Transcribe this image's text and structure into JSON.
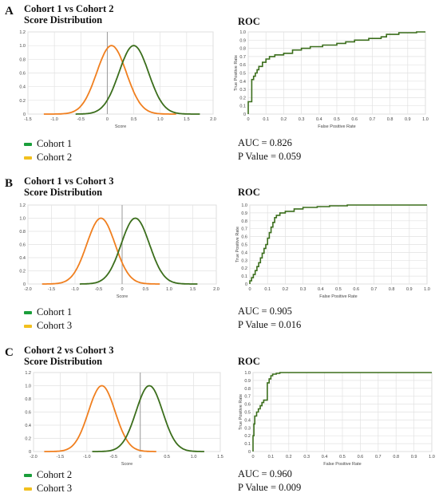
{
  "panels": [
    {
      "letter": "A",
      "title_line1": "Cohort 1 vs Cohort 2",
      "title_line2": "Score Distribution",
      "roc_title": "ROC",
      "auc_text": "AUC = 0.826",
      "pvalue_text": "P Value = 0.059",
      "legend": [
        {
          "label": "Cohort 1",
          "color": "#1a9e3a"
        },
        {
          "label": "Cohort 2",
          "color": "#f2c01e"
        }
      ]
    },
    {
      "letter": "B",
      "title_line1": "Cohort 1 vs Cohort 3",
      "title_line2": "Score Distribution",
      "roc_title": "ROC",
      "auc_text": "AUC = 0.905",
      "pvalue_text": "P Value = 0.016",
      "legend": [
        {
          "label": "Cohort 1",
          "color": "#1a9e3a"
        },
        {
          "label": "Cohort 3",
          "color": "#f2c01e"
        }
      ]
    },
    {
      "letter": "C",
      "title_line1": "Cohort 2 vs Cohort 3",
      "title_line2": "Score Distribution",
      "roc_title": "ROC",
      "auc_text": "AUC = 0.960",
      "pvalue_text": "P Value = 0.009",
      "legend": [
        {
          "label": "Cohort 2",
          "color": "#1a9e3a"
        },
        {
          "label": "Cohort 3",
          "color": "#f2c01e"
        }
      ]
    }
  ],
  "chart_data": [
    {
      "type": "line",
      "panel": "A",
      "kind": "distribution",
      "xlabel": "Score",
      "ylabel": "",
      "xlim": [
        -1.5,
        2.0
      ],
      "ylim": [
        0,
        1.2
      ],
      "xticks": [
        "-1.5",
        "-1.0",
        "-0.5",
        "0",
        "0.5",
        "1.0",
        "1.5",
        "2.0"
      ],
      "yticks": [
        "0",
        "0.2",
        "0.4",
        "0.6",
        "0.8",
        "1.0",
        "1.2"
      ],
      "grid": true,
      "series": [
        {
          "name": "Cohort 2",
          "color": "#f07f1f",
          "gaussian": {
            "mean": 0.08,
            "sd": 0.28,
            "min": -1.2,
            "max": 1.3
          }
        },
        {
          "name": "Cohort 1",
          "color": "#3b6e1c",
          "gaussian": {
            "mean": 0.5,
            "sd": 0.28,
            "min": -0.6,
            "max": 1.75
          }
        }
      ]
    },
    {
      "type": "line",
      "panel": "A",
      "kind": "roc",
      "xlabel": "False Positive Rate",
      "ylabel": "True Positive Rate",
      "xlim": [
        0,
        1
      ],
      "ylim": [
        0,
        1
      ],
      "xticks": [
        "0",
        "0.1",
        "0.2",
        "0.3",
        "0.4",
        "0.5",
        "0.6",
        "0.7",
        "0.8",
        "0.9",
        "1.0"
      ],
      "yticks": [
        "0",
        "0.1",
        "0.2",
        "0.3",
        "0.4",
        "0.5",
        "0.6",
        "0.7",
        "0.8",
        "0.9",
        "1.0"
      ],
      "grid": true,
      "series": [
        {
          "name": "",
          "color": "#3b6e1c",
          "step": true,
          "points": [
            [
              0,
              0
            ],
            [
              0,
              0.15
            ],
            [
              0.02,
              0.15
            ],
            [
              0.02,
              0.42
            ],
            [
              0.03,
              0.42
            ],
            [
              0.03,
              0.46
            ],
            [
              0.04,
              0.46
            ],
            [
              0.04,
              0.5
            ],
            [
              0.05,
              0.5
            ],
            [
              0.05,
              0.54
            ],
            [
              0.06,
              0.54
            ],
            [
              0.06,
              0.58
            ],
            [
              0.08,
              0.58
            ],
            [
              0.08,
              0.63
            ],
            [
              0.1,
              0.63
            ],
            [
              0.1,
              0.67
            ],
            [
              0.12,
              0.67
            ],
            [
              0.12,
              0.7
            ],
            [
              0.15,
              0.7
            ],
            [
              0.15,
              0.72
            ],
            [
              0.2,
              0.72
            ],
            [
              0.2,
              0.74
            ],
            [
              0.25,
              0.74
            ],
            [
              0.25,
              0.78
            ],
            [
              0.3,
              0.78
            ],
            [
              0.3,
              0.8
            ],
            [
              0.35,
              0.8
            ],
            [
              0.35,
              0.82
            ],
            [
              0.42,
              0.82
            ],
            [
              0.42,
              0.84
            ],
            [
              0.5,
              0.84
            ],
            [
              0.5,
              0.86
            ],
            [
              0.55,
              0.86
            ],
            [
              0.55,
              0.88
            ],
            [
              0.6,
              0.88
            ],
            [
              0.6,
              0.9
            ],
            [
              0.68,
              0.9
            ],
            [
              0.68,
              0.92
            ],
            [
              0.75,
              0.92
            ],
            [
              0.75,
              0.94
            ],
            [
              0.78,
              0.94
            ],
            [
              0.78,
              0.97
            ],
            [
              0.85,
              0.97
            ],
            [
              0.85,
              0.99
            ],
            [
              0.95,
              0.99
            ],
            [
              0.95,
              1.0
            ],
            [
              1.0,
              1.0
            ]
          ]
        }
      ]
    },
    {
      "type": "line",
      "panel": "B",
      "kind": "distribution",
      "xlabel": "Score",
      "ylabel": "",
      "xlim": [
        -2.0,
        2.0
      ],
      "ylim": [
        0,
        1.2
      ],
      "xticks": [
        "-2.0",
        "-1.5",
        "-1.0",
        "-0.5",
        "0",
        "0.5",
        "1.0",
        "1.5",
        "2.0"
      ],
      "yticks": [
        "0",
        "0.2",
        "0.4",
        "0.6",
        "0.8",
        "1.0",
        "1.2"
      ],
      "grid": true,
      "series": [
        {
          "name": "Cohort 3",
          "color": "#f07f1f",
          "gaussian": {
            "mean": -0.45,
            "sd": 0.3,
            "min": -1.7,
            "max": 0.8
          }
        },
        {
          "name": "Cohort 1",
          "color": "#3b6e1c",
          "gaussian": {
            "mean": 0.28,
            "sd": 0.3,
            "min": -0.9,
            "max": 1.6
          }
        }
      ]
    },
    {
      "type": "line",
      "panel": "B",
      "kind": "roc",
      "xlabel": "False Positive Rate",
      "ylabel": "True Positive Rate",
      "xlim": [
        0,
        1
      ],
      "ylim": [
        0,
        1
      ],
      "xticks": [
        "0",
        "0.1",
        "0.2",
        "0.3",
        "0.4",
        "0.5",
        "0.6",
        "0.7",
        "0.8",
        "0.9",
        "1.0"
      ],
      "yticks": [
        "0",
        "0.1",
        "0.2",
        "0.3",
        "0.4",
        "0.5",
        "0.6",
        "0.7",
        "0.8",
        "0.9",
        "1.0"
      ],
      "grid": true,
      "series": [
        {
          "name": "",
          "color": "#3b6e1c",
          "step": true,
          "points": [
            [
              0,
              0
            ],
            [
              0,
              0.04
            ],
            [
              0.01,
              0.04
            ],
            [
              0.01,
              0.08
            ],
            [
              0.02,
              0.08
            ],
            [
              0.02,
              0.12
            ],
            [
              0.03,
              0.12
            ],
            [
              0.03,
              0.17
            ],
            [
              0.04,
              0.17
            ],
            [
              0.04,
              0.22
            ],
            [
              0.05,
              0.22
            ],
            [
              0.05,
              0.27
            ],
            [
              0.06,
              0.27
            ],
            [
              0.06,
              0.33
            ],
            [
              0.07,
              0.33
            ],
            [
              0.07,
              0.39
            ],
            [
              0.08,
              0.39
            ],
            [
              0.08,
              0.45
            ],
            [
              0.09,
              0.45
            ],
            [
              0.09,
              0.5
            ],
            [
              0.1,
              0.5
            ],
            [
              0.1,
              0.58
            ],
            [
              0.11,
              0.58
            ],
            [
              0.11,
              0.65
            ],
            [
              0.12,
              0.65
            ],
            [
              0.12,
              0.72
            ],
            [
              0.13,
              0.72
            ],
            [
              0.13,
              0.78
            ],
            [
              0.14,
              0.78
            ],
            [
              0.14,
              0.84
            ],
            [
              0.15,
              0.84
            ],
            [
              0.15,
              0.87
            ],
            [
              0.17,
              0.87
            ],
            [
              0.17,
              0.9
            ],
            [
              0.2,
              0.9
            ],
            [
              0.2,
              0.92
            ],
            [
              0.25,
              0.92
            ],
            [
              0.25,
              0.95
            ],
            [
              0.3,
              0.95
            ],
            [
              0.3,
              0.97
            ],
            [
              0.38,
              0.97
            ],
            [
              0.38,
              0.98
            ],
            [
              0.45,
              0.98
            ],
            [
              0.45,
              0.99
            ],
            [
              0.55,
              0.99
            ],
            [
              0.55,
              1.0
            ],
            [
              1.0,
              1.0
            ]
          ]
        }
      ]
    },
    {
      "type": "line",
      "panel": "C",
      "kind": "distribution",
      "xlabel": "Score",
      "ylabel": "",
      "xlim": [
        -2.0,
        1.5
      ],
      "ylim": [
        0,
        1.2
      ],
      "xticks": [
        "-2.0",
        "-1.5",
        "-1.0",
        "-0.5",
        "0",
        "0.5",
        "1.0",
        "1.5"
      ],
      "yticks": [
        "0",
        "0.2",
        "0.4",
        "0.6",
        "0.8",
        "1.0",
        "1.2"
      ],
      "grid": true,
      "series": [
        {
          "name": "Cohort 3",
          "color": "#f07f1f",
          "gaussian": {
            "mean": -0.72,
            "sd": 0.25,
            "min": -1.8,
            "max": 0.3
          }
        },
        {
          "name": "Cohort 2",
          "color": "#3b6e1c",
          "gaussian": {
            "mean": 0.17,
            "sd": 0.25,
            "min": -0.9,
            "max": 1.2
          }
        }
      ]
    },
    {
      "type": "line",
      "panel": "C",
      "kind": "roc",
      "xlabel": "False Positive Rate",
      "ylabel": "True Positive Rate",
      "xlim": [
        0,
        1
      ],
      "ylim": [
        0,
        1
      ],
      "xticks": [
        "0",
        "0.1",
        "0.2",
        "0.3",
        "0.4",
        "0.5",
        "0.6",
        "0.7",
        "0.8",
        "0.9",
        "1.0"
      ],
      "yticks": [
        "0",
        "0.1",
        "0.2",
        "0.3",
        "0.4",
        "0.5",
        "0.6",
        "0.7",
        "0.8",
        "0.9",
        "1.0"
      ],
      "grid": true,
      "series": [
        {
          "name": "",
          "color": "#3b6e1c",
          "step": true,
          "points": [
            [
              0,
              0
            ],
            [
              0,
              0.2
            ],
            [
              0.005,
              0.2
            ],
            [
              0.005,
              0.35
            ],
            [
              0.01,
              0.35
            ],
            [
              0.01,
              0.45
            ],
            [
              0.02,
              0.45
            ],
            [
              0.02,
              0.5
            ],
            [
              0.03,
              0.5
            ],
            [
              0.03,
              0.54
            ],
            [
              0.04,
              0.54
            ],
            [
              0.04,
              0.58
            ],
            [
              0.05,
              0.58
            ],
            [
              0.05,
              0.62
            ],
            [
              0.06,
              0.62
            ],
            [
              0.06,
              0.65
            ],
            [
              0.08,
              0.65
            ],
            [
              0.08,
              0.87
            ],
            [
              0.09,
              0.87
            ],
            [
              0.09,
              0.92
            ],
            [
              0.1,
              0.92
            ],
            [
              0.1,
              0.96
            ],
            [
              0.11,
              0.96
            ],
            [
              0.11,
              0.98
            ],
            [
              0.13,
              0.98
            ],
            [
              0.13,
              0.99
            ],
            [
              0.15,
              0.99
            ],
            [
              0.15,
              1.0
            ],
            [
              1.0,
              1.0
            ]
          ]
        }
      ]
    }
  ]
}
